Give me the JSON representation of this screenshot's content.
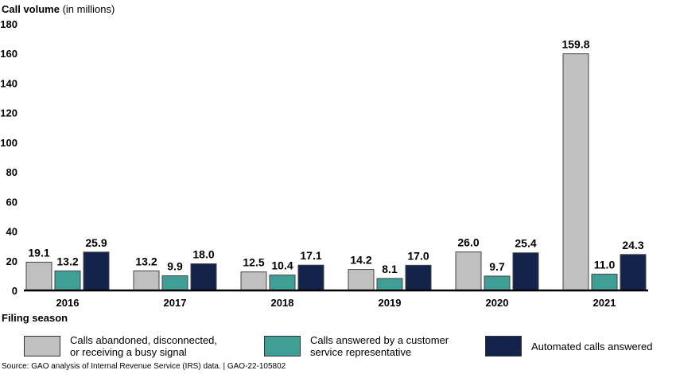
{
  "chart_data": {
    "type": "bar",
    "ylabel_bold": "Call volume",
    "ylabel_rest": " (in millions)",
    "xlabel": "Filing season",
    "ylim": [
      0,
      180
    ],
    "yticks": [
      0,
      20,
      40,
      60,
      80,
      100,
      120,
      140,
      160,
      180
    ],
    "categories": [
      "2016",
      "2017",
      "2018",
      "2019",
      "2020",
      "2021"
    ],
    "series": [
      {
        "name": "Calls abandoned, disconnected,\nor receiving a busy signal",
        "color": "#c0c0c0",
        "values": [
          19.1,
          13.2,
          12.5,
          14.2,
          26.0,
          159.8
        ],
        "labels": [
          "19.1",
          "13.2",
          "12.5",
          "14.2",
          "26.0",
          "159.8"
        ]
      },
      {
        "name": "Calls answered by a customer\nservice representative",
        "color": "#3f9e96",
        "values": [
          13.2,
          9.9,
          10.4,
          8.1,
          9.7,
          11.0
        ],
        "labels": [
          "13.2",
          "9.9",
          "10.4",
          "8.1",
          "9.7",
          "11.0"
        ]
      },
      {
        "name": "Automated calls answered",
        "color": "#14234a",
        "values": [
          25.9,
          18.0,
          17.1,
          17.0,
          25.4,
          24.3
        ],
        "labels": [
          "25.9",
          "18.0",
          "17.1",
          "17.0",
          "25.4",
          "24.3"
        ]
      }
    ],
    "grid": false,
    "legend_position": "bottom"
  },
  "source": "Source: GAO analysis of Internal Revenue Service (IRS) data.  |  GAO-22-105802"
}
